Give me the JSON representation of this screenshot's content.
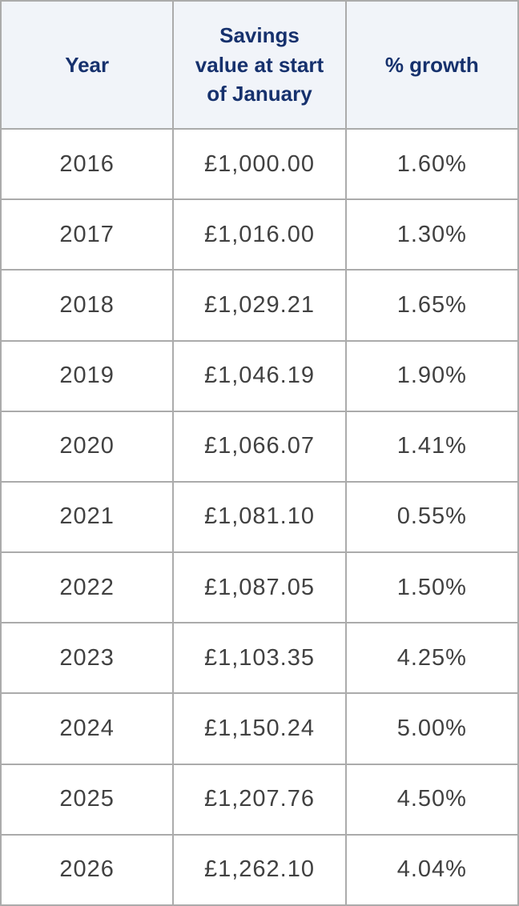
{
  "chart_data": {
    "type": "table",
    "title": "",
    "columns": [
      "Year",
      "Savings value at start of January",
      "% growth"
    ],
    "rows": [
      [
        "2016",
        "£1,000.00",
        "1.60%"
      ],
      [
        "2017",
        "£1,016.00",
        "1.30%"
      ],
      [
        "2018",
        "£1,029.21",
        "1.65%"
      ],
      [
        "2019",
        "£1,046.19",
        "1.90%"
      ],
      [
        "2020",
        "£1,066.07",
        "1.41%"
      ],
      [
        "2021",
        "£1,081.10",
        "0.55%"
      ],
      [
        "2022",
        "£1,087.05",
        "1.50%"
      ],
      [
        "2023",
        "£1,103.35",
        "4.25%"
      ],
      [
        "2024",
        "£1,150.24",
        "5.00%"
      ],
      [
        "2025",
        "£1,207.76",
        "4.50%"
      ],
      [
        "2026",
        "£1,262.10",
        "4.04%"
      ]
    ]
  },
  "table": {
    "columns": [
      "Year",
      "Savings\nvalue at start\nof January",
      "% growth"
    ],
    "rows": [
      {
        "year": "2016",
        "savings": "£1,000.00",
        "growth": "1.60%"
      },
      {
        "year": "2017",
        "savings": "£1,016.00",
        "growth": "1.30%"
      },
      {
        "year": "2018",
        "savings": "£1,029.21",
        "growth": "1.65%"
      },
      {
        "year": "2019",
        "savings": "£1,046.19",
        "growth": "1.90%"
      },
      {
        "year": "2020",
        "savings": "£1,066.07",
        "growth": "1.41%"
      },
      {
        "year": "2021",
        "savings": "£1,081.10",
        "growth": "0.55%"
      },
      {
        "year": "2022",
        "savings": "£1,087.05",
        "growth": "1.50%"
      },
      {
        "year": "2023",
        "savings": "£1,103.35",
        "growth": "4.25%"
      },
      {
        "year": "2024",
        "savings": "£1,150.24",
        "growth": "5.00%"
      },
      {
        "year": "2025",
        "savings": "£1,207.76",
        "growth": "4.50%"
      },
      {
        "year": "2026",
        "savings": "£1,262.10",
        "growth": "4.04%"
      }
    ]
  },
  "colors": {
    "header_bg": "#f1f4f9",
    "header_text": "#16316d",
    "body_text": "#414141",
    "border": "#ababab",
    "body_bg": "#ffffff"
  }
}
